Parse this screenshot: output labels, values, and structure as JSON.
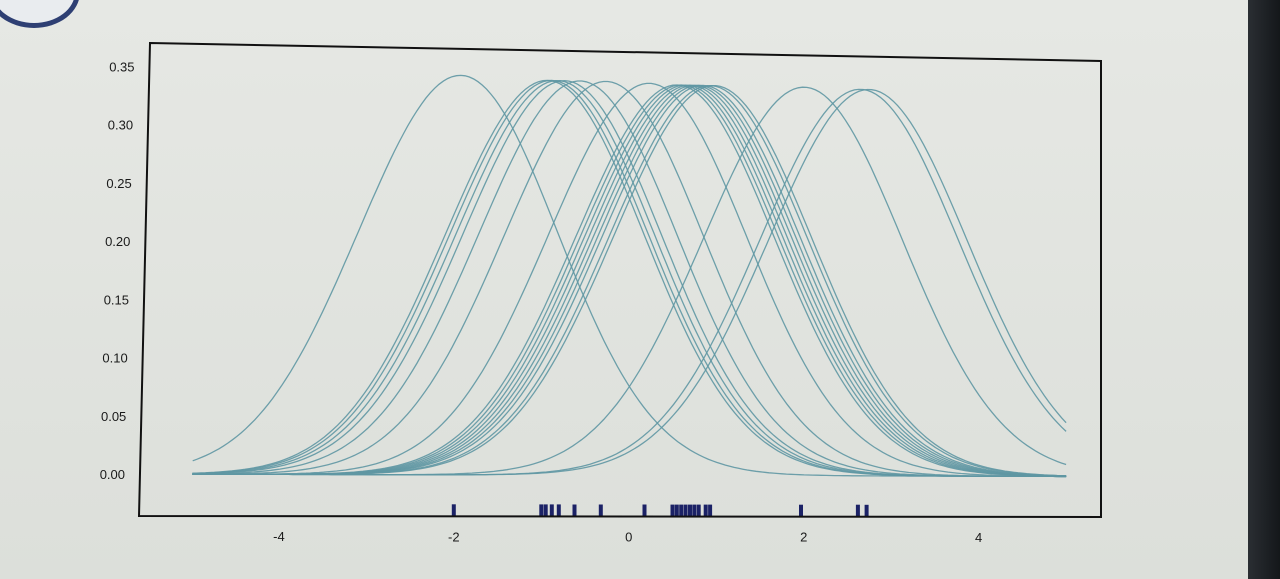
{
  "chart_data": {
    "type": "line",
    "title": "",
    "xlabel": "",
    "ylabel": "",
    "xlim": [
      -5.6,
      5.4
    ],
    "ylim": [
      -0.036,
      0.37
    ],
    "xticks": [
      "-4",
      "-2",
      "0",
      "2",
      "4"
    ],
    "yticks": [
      "0.00",
      "0.05",
      "0.10",
      "0.15",
      "0.20",
      "0.25",
      "0.30",
      "0.35"
    ],
    "curve_style": "gaussian kernels, bandwidth ~1.15, each peaking near 0.34-0.35",
    "x_domain": [
      -5,
      5
    ],
    "series": [
      {
        "center": -2.0,
        "peak": 0.347
      },
      {
        "center": -1.0,
        "peak": 0.344
      },
      {
        "center": -0.95,
        "peak": 0.344
      },
      {
        "center": -0.88,
        "peak": 0.344
      },
      {
        "center": -0.8,
        "peak": 0.344
      },
      {
        "center": -0.62,
        "peak": 0.344
      },
      {
        "center": -0.32,
        "peak": 0.344
      },
      {
        "center": 0.18,
        "peak": 0.343
      },
      {
        "center": 0.5,
        "peak": 0.342
      },
      {
        "center": 0.55,
        "peak": 0.342
      },
      {
        "center": 0.6,
        "peak": 0.342
      },
      {
        "center": 0.65,
        "peak": 0.342
      },
      {
        "center": 0.7,
        "peak": 0.342
      },
      {
        "center": 0.75,
        "peak": 0.342
      },
      {
        "center": 0.8,
        "peak": 0.342
      },
      {
        "center": 0.88,
        "peak": 0.342
      },
      {
        "center": 0.93,
        "peak": 0.342
      },
      {
        "center": 1.97,
        "peak": 0.342
      },
      {
        "center": 2.62,
        "peak": 0.341
      },
      {
        "center": 2.72,
        "peak": 0.341
      }
    ],
    "rug": [
      -2.0,
      -1.0,
      -0.95,
      -0.88,
      -0.8,
      -0.62,
      -0.32,
      0.18,
      0.5,
      0.55,
      0.6,
      0.65,
      0.7,
      0.75,
      0.8,
      0.88,
      0.93,
      1.97,
      2.62,
      2.72
    ],
    "colors": {
      "curve": "#5f97a3",
      "rug": "#1b2266",
      "axes": "#111111"
    }
  }
}
